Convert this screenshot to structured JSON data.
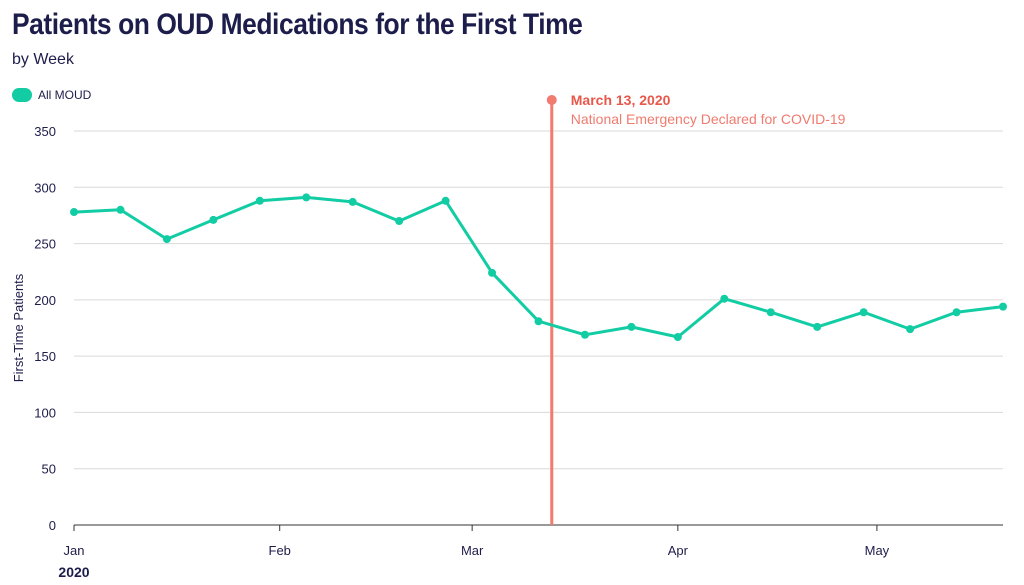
{
  "header": {
    "title": "Patients on OUD Medications for the First Time",
    "subtitle": "by Week"
  },
  "colors": {
    "series": "#12cca4",
    "annotation": "#f07b6e",
    "grid": "#d9d9d9",
    "text": "#1d1d4b"
  },
  "chart_data": {
    "type": "line",
    "title": "Patients on OUD Medications for the First Time",
    "subtitle": "by Week",
    "xlabel": "",
    "ylabel": "First-Time Patients",
    "ylim": [
      0,
      350
    ],
    "yticks": [
      0,
      50,
      100,
      150,
      200,
      250,
      300,
      350
    ],
    "xlim": [
      "2020-01-01",
      "2020-05-20"
    ],
    "xticks": [
      {
        "date": "2020-01-01",
        "label": "Jan"
      },
      {
        "date": "2020-02-01",
        "label": "Feb"
      },
      {
        "date": "2020-03-01",
        "label": "Mar"
      },
      {
        "date": "2020-04-01",
        "label": "Apr"
      },
      {
        "date": "2020-05-01",
        "label": "May"
      }
    ],
    "year_label": "2020",
    "grid": true,
    "legend": "top-left",
    "series": [
      {
        "name": "All MOUD",
        "x": [
          "2020-01-01",
          "2020-01-08",
          "2020-01-15",
          "2020-01-22",
          "2020-01-29",
          "2020-02-05",
          "2020-02-12",
          "2020-02-19",
          "2020-02-26",
          "2020-03-04",
          "2020-03-11",
          "2020-03-18",
          "2020-03-25",
          "2020-04-01",
          "2020-04-08",
          "2020-04-15",
          "2020-04-22",
          "2020-04-29",
          "2020-05-06",
          "2020-05-13",
          "2020-05-20"
        ],
        "values": [
          278,
          280,
          254,
          271,
          288,
          291,
          287,
          270,
          288,
          224,
          181,
          169,
          176,
          167,
          201,
          189,
          176,
          189,
          174,
          189,
          194
        ]
      }
    ],
    "annotation": {
      "x": "2020-03-13",
      "date_label": "March 13, 2020",
      "text": "National Emergency Declared for COVID-19"
    }
  }
}
